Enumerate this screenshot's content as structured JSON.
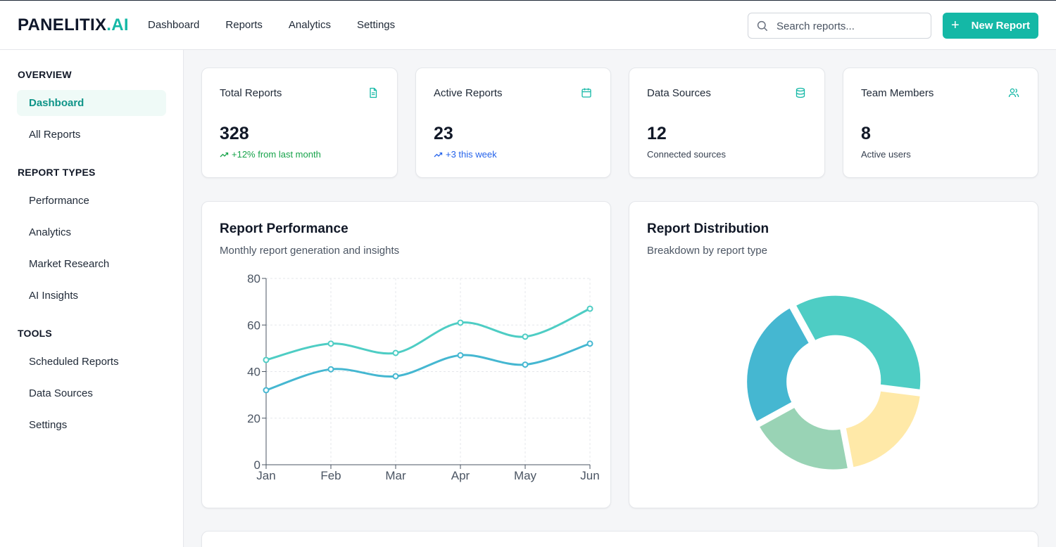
{
  "header": {
    "logo_main": "PANELITIX",
    "logo_accent": ".AI",
    "nav": [
      "Dashboard",
      "Reports",
      "Analytics",
      "Settings"
    ],
    "search_placeholder": "Search reports...",
    "new_button": "New Report"
  },
  "sidebar": {
    "sections": [
      {
        "title": "OVERVIEW",
        "items": [
          "Dashboard",
          "All Reports"
        ]
      },
      {
        "title": "REPORT TYPES",
        "items": [
          "Performance",
          "Analytics",
          "Market Research",
          "AI Insights"
        ]
      },
      {
        "title": "TOOLS",
        "items": [
          "Scheduled Reports",
          "Data Sources",
          "Settings"
        ]
      }
    ],
    "active_item": "Dashboard"
  },
  "stats": [
    {
      "label": "Total Reports",
      "value": "328",
      "sub": "+12% from last month",
      "icon": "file-text-icon",
      "trend": true
    },
    {
      "label": "Active Reports",
      "value": "23",
      "sub": "+3 this week",
      "icon": "calendar-icon",
      "trend": true
    },
    {
      "label": "Data Sources",
      "value": "12",
      "sub": "Connected sources",
      "icon": "database-icon",
      "trend": false
    },
    {
      "label": "Team Members",
      "value": "8",
      "sub": "Active users",
      "icon": "users-icon",
      "trend": false
    }
  ],
  "performance": {
    "title": "Report Performance",
    "subtitle": "Monthly report generation and insights"
  },
  "distribution": {
    "title": "Report Distribution",
    "subtitle": "Breakdown by report type"
  },
  "colors": {
    "accent": "#14b8a6",
    "line1": "#4ecdc4",
    "line2": "#45b7d1",
    "pie": [
      "#4ecdc4",
      "#ffe9a8",
      "#99d3b5",
      "#45b7d1"
    ]
  },
  "chart_data": [
    {
      "type": "line",
      "x": [
        "Jan",
        "Feb",
        "Mar",
        "Apr",
        "May",
        "Jun"
      ],
      "ylim": [
        0,
        80
      ],
      "yticks": [
        0,
        20,
        40,
        60,
        80
      ],
      "grid": true,
      "series": [
        {
          "values": [
            45,
            52,
            48,
            61,
            55,
            67
          ]
        },
        {
          "values": [
            32,
            41,
            38,
            47,
            43,
            52
          ]
        }
      ]
    },
    {
      "type": "pie",
      "donut": true,
      "values": [
        35,
        20,
        20,
        25
      ]
    }
  ]
}
